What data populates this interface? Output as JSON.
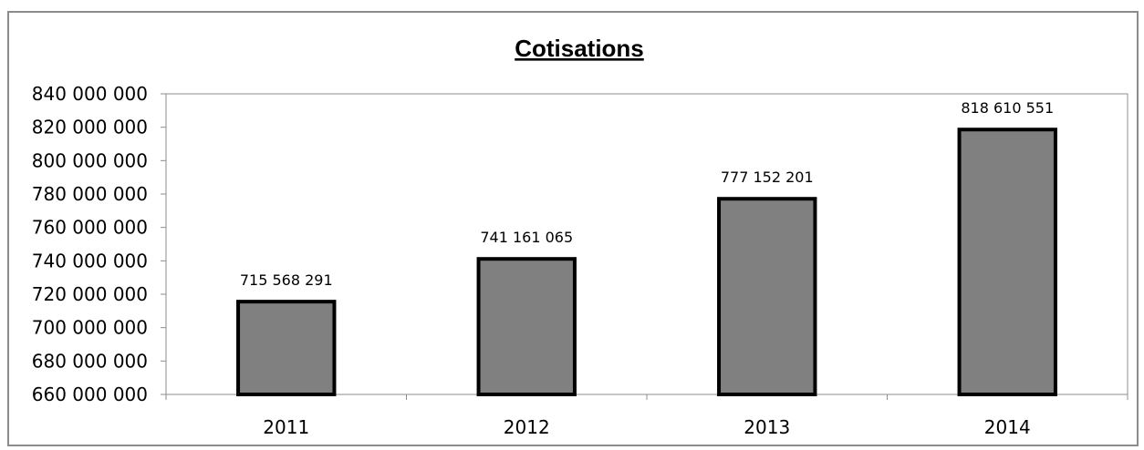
{
  "chart_data": {
    "type": "bar",
    "title": "Cotisations",
    "xlabel": "",
    "ylabel": "",
    "categories": [
      "2011",
      "2012",
      "2013",
      "2014"
    ],
    "values": [
      715568291,
      741161065,
      777152201,
      818610551
    ],
    "value_labels": [
      "715 568 291",
      "741 161 065",
      "777 152 201",
      "818 610 551"
    ],
    "ylim": [
      660000000,
      840000000
    ],
    "ytick_step": 20000000,
    "ytick_labels": [
      "660 000 000",
      "680 000 000",
      "700 000 000",
      "720 000 000",
      "740 000 000",
      "760 000 000",
      "780 000 000",
      "800 000 000",
      "820 000 000",
      "840 000 000"
    ],
    "grid": false,
    "legend": "none",
    "colors": {
      "bar_fill": "#808080",
      "bar_stroke": "#000000",
      "plot_border": "#8c8c8c",
      "axis": "#8c8c8c",
      "frame": "#8c8c8c"
    }
  }
}
